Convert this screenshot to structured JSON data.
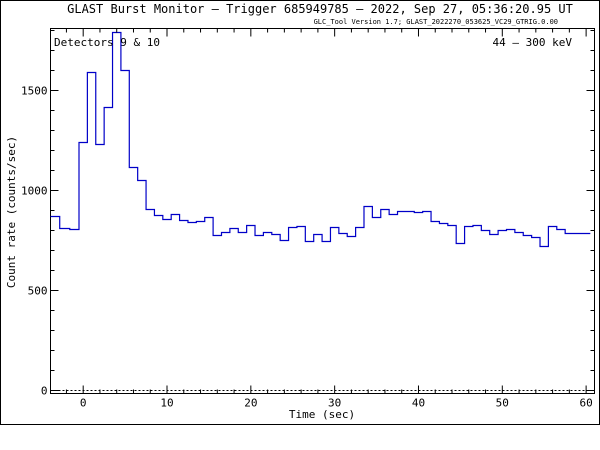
{
  "header": {
    "title": "GLAST Burst Monitor  –  Trigger 685949785  –  2022, Sep 27, 05:36:20.95 UT",
    "version": "GLC_Tool Version 1.7; GLAST_2022270_053625_VC29_GTRIG.0.00"
  },
  "panel": {
    "detectors": "Detectors 9 & 10",
    "energy": "44 – 300 keV"
  },
  "colors": {
    "series": "#0000c8",
    "axis": "#000000",
    "baseline": "#000000"
  },
  "chart_data": {
    "type": "line",
    "style": "step",
    "xlabel": "Time (sec)",
    "ylabel": "Count rate (counts/sec)",
    "xlim": [
      -3.9,
      61
    ],
    "ylim": [
      -15,
      1810
    ],
    "xticks": [
      0,
      10,
      20,
      30,
      40,
      50,
      60
    ],
    "yticks": [
      0,
      500,
      1000,
      1500
    ],
    "grid": false,
    "bin_edges": [
      -3.9,
      -2.8,
      -1.6,
      -0.5,
      0.5,
      1.5,
      2.5,
      3.5,
      4.5,
      5.5,
      6.5,
      7.5,
      8.5,
      9.5,
      10.5,
      11.5,
      12.5,
      13.5,
      14.5,
      15.5,
      16.5,
      17.5,
      18.5,
      19.5,
      20.5,
      21.5,
      22.5,
      23.5,
      24.5,
      25.5,
      26.5,
      27.5,
      28.5,
      29.5,
      30.5,
      31.5,
      32.5,
      33.5,
      34.5,
      35.5,
      36.5,
      37.5,
      38.5,
      39.5,
      40.5,
      41.5,
      42.5,
      43.5,
      44.5,
      45.5,
      46.5,
      47.5,
      48.5,
      49.5,
      50.5,
      51.5,
      52.5,
      53.5,
      54.5,
      55.5,
      56.5,
      57.5,
      58.5,
      59.5,
      60.5,
      61.0
    ],
    "series": [
      {
        "values": [
          870,
          810,
          805,
          1240,
          1590,
          1230,
          1415,
          1790,
          1600,
          1115,
          1050,
          905,
          875,
          855,
          880,
          850,
          840,
          845,
          865,
          775,
          790,
          810,
          790,
          825,
          775,
          790,
          780,
          750,
          815,
          820,
          745,
          780,
          745,
          815,
          785,
          770,
          815,
          920,
          865,
          905,
          880,
          895,
          895,
          890,
          895,
          845,
          835,
          825,
          735,
          820,
          825,
          800,
          780,
          800,
          805,
          790,
          775,
          765,
          720,
          820,
          805,
          785,
          785,
          785
        ]
      }
    ],
    "baseline": 0
  }
}
